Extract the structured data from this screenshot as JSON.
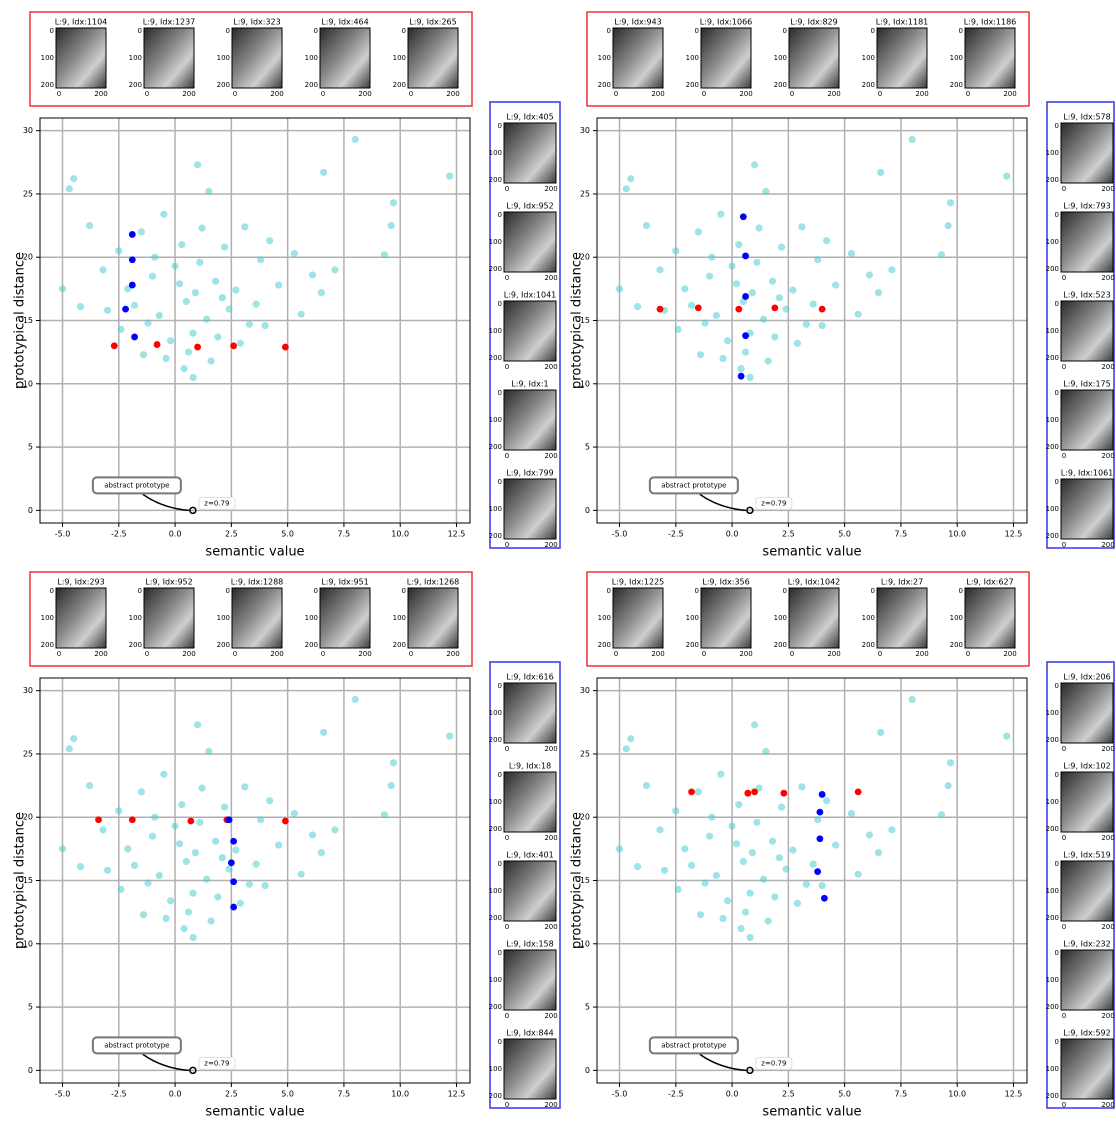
{
  "chart_data": [
    {
      "type": "scatter",
      "xlabel": "semantic value",
      "ylabel": "prototypical distance",
      "xlim": [
        -6,
        13.1
      ],
      "ylim": [
        -1,
        31
      ],
      "xticks": [
        {
          "value": -5,
          "label": "-5.0"
        },
        {
          "value": -2.5,
          "label": "-2.5"
        },
        {
          "value": 0,
          "label": "0.0"
        },
        {
          "value": 2.5,
          "label": "2.5"
        },
        {
          "value": 5,
          "label": "5.0"
        },
        {
          "value": 7.5,
          "label": "7.5"
        },
        {
          "value": 10,
          "label": "10.0"
        },
        {
          "value": 12.5,
          "label": "12.5"
        }
      ],
      "yticks": [
        0,
        5,
        10,
        15,
        20,
        25,
        30
      ],
      "grid": true,
      "annotation": {
        "text": "abstract prototype",
        "label": "z=0.79",
        "x": 0.79,
        "y": 0
      },
      "series": [
        {
          "color": "#4ecdcd",
          "x": [
            12.2,
            8,
            -4.7,
            -4.5,
            1,
            6.6,
            9.7,
            9.6,
            9.3,
            -5,
            0.8,
            1.5,
            -3.8,
            -3.2,
            -2.5,
            -1.5,
            -0.5,
            0.3,
            1.2,
            2.2,
            3.1,
            4.2,
            5.3,
            6.1,
            -2.1,
            -1,
            0,
            0.9,
            1.8,
            2.7,
            3.6,
            4.6,
            -3,
            -1.8,
            -0.7,
            0.5,
            1.4,
            2.4,
            3.3,
            -2.4,
            -1.2,
            -0.2,
            0.8,
            1.9,
            2.9,
            4,
            5.6,
            -0.4,
            0.6,
            1.6,
            -1.4,
            2.1,
            0.2,
            -0.9,
            1.1,
            3.8,
            6.5,
            -4.2,
            7.1,
            0.4
          ],
          "values": [
            26.4,
            29.3,
            25.4,
            26.2,
            27.3,
            26.7,
            24.3,
            22.5,
            20.2,
            17.5,
            10.5,
            25.2,
            22.5,
            19,
            20.5,
            22,
            23.4,
            21,
            22.3,
            20.8,
            22.4,
            21.3,
            20.3,
            18.6,
            17.5,
            18.5,
            19.3,
            17.2,
            18.1,
            17.4,
            16.3,
            17.8,
            15.8,
            16.2,
            15.4,
            16.5,
            15.1,
            15.9,
            14.7,
            14.3,
            14.8,
            13.4,
            14,
            13.7,
            13.2,
            14.6,
            15.5,
            12,
            12.5,
            11.8,
            12.3,
            16.8,
            17.9,
            20,
            19.6,
            19.8,
            17.2,
            16.1,
            19,
            11.2
          ]
        },
        {
          "color": "#ff0000",
          "x": [
            -2.7,
            -0.8,
            1,
            2.6,
            4.9
          ],
          "values": [
            13,
            13.1,
            12.9,
            13,
            12.9
          ]
        },
        {
          "color": "#0000ff",
          "x": [
            -1.9,
            -1.9,
            -1.9,
            -2.2,
            -1.8
          ],
          "values": [
            21.8,
            19.8,
            17.8,
            15.9,
            13.7
          ]
        }
      ],
      "image_xticks": [
        0,
        200
      ],
      "image_yticks": [
        0,
        100,
        200
      ],
      "top_images": [
        "L:9, Idx:1104",
        "L:9, Idx:1237",
        "L:9, Idx:323",
        "L:9, Idx:464",
        "L:9, Idx:265"
      ],
      "side_images": [
        "L:9, Idx:405",
        "L:9, Idx:952",
        "L:9, Idx:1041",
        "L:9, Idx:1",
        "L:9, Idx:799"
      ]
    },
    {
      "type": "scatter",
      "xlabel": "semantic value",
      "ylabel": "prototypical distance",
      "xlim": [
        -6,
        13.1
      ],
      "ylim": [
        -1,
        31
      ],
      "xticks": [
        {
          "value": -5,
          "label": "-5.0"
        },
        {
          "value": -2.5,
          "label": "-2.5"
        },
        {
          "value": 0,
          "label": "0.0"
        },
        {
          "value": 2.5,
          "label": "2.5"
        },
        {
          "value": 5,
          "label": "5.0"
        },
        {
          "value": 7.5,
          "label": "7.5"
        },
        {
          "value": 10,
          "label": "10.0"
        },
        {
          "value": 12.5,
          "label": "12.5"
        }
      ],
      "yticks": [
        0,
        5,
        10,
        15,
        20,
        25,
        30
      ],
      "grid": true,
      "annotation": {
        "text": "abstract prototype",
        "label": "z=0.79",
        "x": 0.79,
        "y": 0
      },
      "series": [
        {
          "color": "#4ecdcd",
          "x": [
            12.2,
            8,
            -4.7,
            -4.5,
            1,
            6.6,
            9.7,
            9.6,
            9.3,
            -5,
            0.8,
            1.5,
            -3.8,
            -3.2,
            -2.5,
            -1.5,
            -0.5,
            0.3,
            1.2,
            2.2,
            3.1,
            4.2,
            5.3,
            6.1,
            -2.1,
            -1,
            0,
            0.9,
            1.8,
            2.7,
            3.6,
            4.6,
            -3,
            -1.8,
            -0.7,
            0.5,
            1.4,
            2.4,
            3.3,
            -2.4,
            -1.2,
            -0.2,
            0.8,
            1.9,
            2.9,
            4,
            5.6,
            -0.4,
            0.6,
            1.6,
            -1.4,
            2.1,
            0.2,
            -0.9,
            1.1,
            3.8,
            6.5,
            -4.2,
            7.1,
            0.4
          ],
          "values": [
            26.4,
            29.3,
            25.4,
            26.2,
            27.3,
            26.7,
            24.3,
            22.5,
            20.2,
            17.5,
            10.5,
            25.2,
            22.5,
            19,
            20.5,
            22,
            23.4,
            21,
            22.3,
            20.8,
            22.4,
            21.3,
            20.3,
            18.6,
            17.5,
            18.5,
            19.3,
            17.2,
            18.1,
            17.4,
            16.3,
            17.8,
            15.8,
            16.2,
            15.4,
            16.5,
            15.1,
            15.9,
            14.7,
            14.3,
            14.8,
            13.4,
            14,
            13.7,
            13.2,
            14.6,
            15.5,
            12,
            12.5,
            11.8,
            12.3,
            16.8,
            17.9,
            20,
            19.6,
            19.8,
            17.2,
            16.1,
            19,
            11.2
          ]
        },
        {
          "color": "#ff0000",
          "x": [
            -3.2,
            -1.5,
            0.3,
            1.9,
            4
          ],
          "values": [
            15.9,
            16,
            15.9,
            16,
            15.9
          ]
        },
        {
          "color": "#0000ff",
          "x": [
            0.5,
            0.6,
            0.6,
            0.6,
            0.4
          ],
          "values": [
            23.2,
            20.1,
            16.9,
            13.8,
            10.6
          ]
        }
      ],
      "image_xticks": [
        0,
        200
      ],
      "image_yticks": [
        0,
        100,
        200
      ],
      "top_images": [
        "L:9, Idx:943",
        "L:9, Idx:1066",
        "L:9, Idx:829",
        "L:9, Idx:1181",
        "L:9, Idx:1186"
      ],
      "side_images": [
        "L:9, Idx:578",
        "L:9, Idx:793",
        "L:9, Idx:523",
        "L:9, Idx:175",
        "L:9, Idx:1061"
      ]
    },
    {
      "type": "scatter",
      "xlabel": "semantic value",
      "ylabel": "prototypical distance",
      "xlim": [
        -6,
        13.1
      ],
      "ylim": [
        -1,
        31
      ],
      "xticks": [
        {
          "value": -5,
          "label": "-5.0"
        },
        {
          "value": -2.5,
          "label": "-2.5"
        },
        {
          "value": 0,
          "label": "0.0"
        },
        {
          "value": 2.5,
          "label": "2.5"
        },
        {
          "value": 5,
          "label": "5.0"
        },
        {
          "value": 7.5,
          "label": "7.5"
        },
        {
          "value": 10,
          "label": "10.0"
        },
        {
          "value": 12.5,
          "label": "12.5"
        }
      ],
      "yticks": [
        0,
        5,
        10,
        15,
        20,
        25,
        30
      ],
      "grid": true,
      "annotation": {
        "text": "abstract prototype",
        "label": "z=0.79",
        "x": 0.79,
        "y": 0
      },
      "series": [
        {
          "color": "#4ecdcd",
          "x": [
            12.2,
            8,
            -4.7,
            -4.5,
            1,
            6.6,
            9.7,
            9.6,
            9.3,
            -5,
            0.8,
            1.5,
            -3.8,
            -3.2,
            -2.5,
            -1.5,
            -0.5,
            0.3,
            1.2,
            2.2,
            3.1,
            4.2,
            5.3,
            6.1,
            -2.1,
            -1,
            0,
            0.9,
            1.8,
            2.7,
            3.6,
            4.6,
            -3,
            -1.8,
            -0.7,
            0.5,
            1.4,
            2.4,
            3.3,
            -2.4,
            -1.2,
            -0.2,
            0.8,
            1.9,
            2.9,
            4,
            5.6,
            -0.4,
            0.6,
            1.6,
            -1.4,
            2.1,
            0.2,
            -0.9,
            1.1,
            3.8,
            6.5,
            -4.2,
            7.1,
            0.4
          ],
          "values": [
            26.4,
            29.3,
            25.4,
            26.2,
            27.3,
            26.7,
            24.3,
            22.5,
            20.2,
            17.5,
            10.5,
            25.2,
            22.5,
            19,
            20.5,
            22,
            23.4,
            21,
            22.3,
            20.8,
            22.4,
            21.3,
            20.3,
            18.6,
            17.5,
            18.5,
            19.3,
            17.2,
            18.1,
            17.4,
            16.3,
            17.8,
            15.8,
            16.2,
            15.4,
            16.5,
            15.1,
            15.9,
            14.7,
            14.3,
            14.8,
            13.4,
            14,
            13.7,
            13.2,
            14.6,
            15.5,
            12,
            12.5,
            11.8,
            12.3,
            16.8,
            17.9,
            20,
            19.6,
            19.8,
            17.2,
            16.1,
            19,
            11.2
          ]
        },
        {
          "color": "#ff0000",
          "x": [
            -3.4,
            -1.9,
            0.7,
            2.3,
            4.9
          ],
          "values": [
            19.8,
            19.8,
            19.7,
            19.8,
            19.7
          ]
        },
        {
          "color": "#0000ff",
          "x": [
            2.4,
            2.6,
            2.5,
            2.6,
            2.6
          ],
          "values": [
            19.8,
            18.1,
            16.4,
            14.9,
            12.9
          ]
        }
      ],
      "image_xticks": [
        0,
        200
      ],
      "image_yticks": [
        0,
        100,
        200
      ],
      "top_images": [
        "L:9, Idx:293",
        "L:9, Idx:952",
        "L:9, Idx:1288",
        "L:9, Idx:951",
        "L:9, Idx:1268"
      ],
      "side_images": [
        "L:9, Idx:616",
        "L:9, Idx:18",
        "L:9, Idx:401",
        "L:9, Idx:158",
        "L:9, Idx:844"
      ]
    },
    {
      "type": "scatter",
      "xlabel": "semantic value",
      "ylabel": "prototypical distance",
      "xlim": [
        -6,
        13.1
      ],
      "ylim": [
        -1,
        31
      ],
      "xticks": [
        {
          "value": -5,
          "label": "-5.0"
        },
        {
          "value": -2.5,
          "label": "-2.5"
        },
        {
          "value": 0,
          "label": "0.0"
        },
        {
          "value": 2.5,
          "label": "2.5"
        },
        {
          "value": 5,
          "label": "5.0"
        },
        {
          "value": 7.5,
          "label": "7.5"
        },
        {
          "value": 10,
          "label": "10.0"
        },
        {
          "value": 12.5,
          "label": "12.5"
        }
      ],
      "yticks": [
        0,
        5,
        10,
        15,
        20,
        25,
        30
      ],
      "grid": true,
      "annotation": {
        "text": "abstract prototype",
        "label": "z=0.79",
        "x": 0.79,
        "y": 0
      },
      "series": [
        {
          "color": "#4ecdcd",
          "x": [
            12.2,
            8,
            -4.7,
            -4.5,
            1,
            6.6,
            9.7,
            9.6,
            9.3,
            -5,
            0.8,
            1.5,
            -3.8,
            -3.2,
            -2.5,
            -1.5,
            -0.5,
            0.3,
            1.2,
            2.2,
            3.1,
            4.2,
            5.3,
            6.1,
            -2.1,
            -1,
            0,
            0.9,
            1.8,
            2.7,
            3.6,
            4.6,
            -3,
            -1.8,
            -0.7,
            0.5,
            1.4,
            2.4,
            3.3,
            -2.4,
            -1.2,
            -0.2,
            0.8,
            1.9,
            2.9,
            4,
            5.6,
            -0.4,
            0.6,
            1.6,
            -1.4,
            2.1,
            0.2,
            -0.9,
            1.1,
            3.8,
            6.5,
            -4.2,
            7.1,
            0.4
          ],
          "values": [
            26.4,
            29.3,
            25.4,
            26.2,
            27.3,
            26.7,
            24.3,
            22.5,
            20.2,
            17.5,
            10.5,
            25.2,
            22.5,
            19,
            20.5,
            22,
            23.4,
            21,
            22.3,
            20.8,
            22.4,
            21.3,
            20.3,
            18.6,
            17.5,
            18.5,
            19.3,
            17.2,
            18.1,
            17.4,
            16.3,
            17.8,
            15.8,
            16.2,
            15.4,
            16.5,
            15.1,
            15.9,
            14.7,
            14.3,
            14.8,
            13.4,
            14,
            13.7,
            13.2,
            14.6,
            15.5,
            12,
            12.5,
            11.8,
            12.3,
            16.8,
            17.9,
            20,
            19.6,
            19.8,
            17.2,
            16.1,
            19,
            11.2
          ]
        },
        {
          "color": "#ff0000",
          "x": [
            -1.8,
            0.7,
            1,
            2.3,
            5.6
          ],
          "values": [
            22,
            21.9,
            22,
            21.9,
            22
          ]
        },
        {
          "color": "#0000ff",
          "x": [
            4,
            3.9,
            3.9,
            3.8,
            4.1
          ],
          "values": [
            21.8,
            20.4,
            18.3,
            15.7,
            13.6
          ]
        }
      ],
      "image_xticks": [
        0,
        200
      ],
      "image_yticks": [
        0,
        100,
        200
      ],
      "top_images": [
        "L:9, Idx:1225",
        "L:9, Idx:356",
        "L:9, Idx:1042",
        "L:9, Idx:27",
        "L:9, Idx:627"
      ],
      "side_images": [
        "L:9, Idx:206",
        "L:9, Idx:102",
        "L:9, Idx:519",
        "L:9, Idx:232",
        "L:9, Idx:592"
      ]
    }
  ]
}
